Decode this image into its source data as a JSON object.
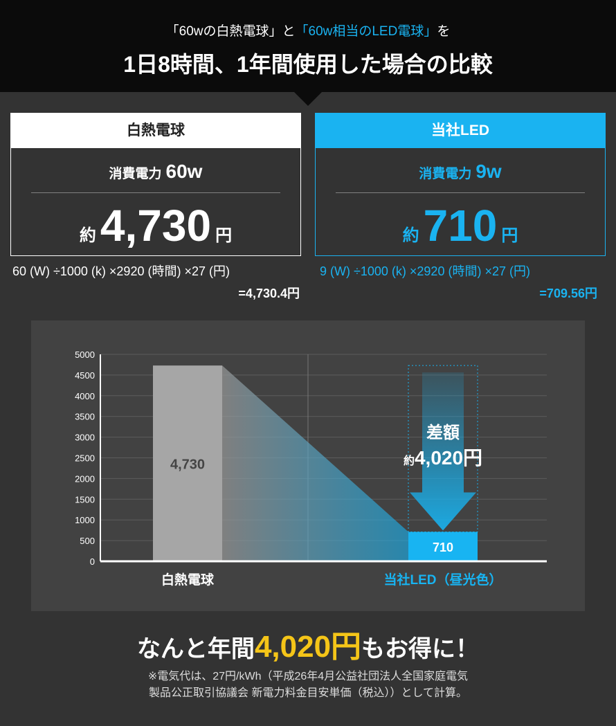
{
  "header": {
    "subtitle_parts": [
      "「60wの白熱電球」と",
      "「60w相当のLED電球」",
      "を"
    ],
    "title": "1日8時間、1年間使用した場合の比較"
  },
  "cards": [
    {
      "label": "白熱電球",
      "power_label": "消費電力",
      "power": "60w",
      "cost_prefix": "約",
      "cost": "4,730",
      "cost_unit": "円",
      "formula": "60 (W) ÷1000 (k) ×2920 (時間) ×27 (円)",
      "result": "=4,730.4円"
    },
    {
      "label": "当社LED",
      "power_label": "消費電力",
      "power": "9w",
      "cost_prefix": "約",
      "cost": "710",
      "cost_unit": "円",
      "formula": "9 (W) ÷1000 (k) ×2920 (時間) ×27 (円)",
      "result": "=709.56円"
    }
  ],
  "chart_data": {
    "type": "bar",
    "categories": [
      "白熱電球",
      "当社LED（昼光色）"
    ],
    "values": [
      4730,
      710
    ],
    "value_labels": [
      "4,730",
      "710"
    ],
    "colors": [
      "#a6a6a6",
      "#18b4f2"
    ],
    "ylim": [
      0,
      5000
    ],
    "yticks": [
      0,
      500,
      1000,
      1500,
      2000,
      2500,
      3000,
      3500,
      4000,
      4500,
      5000
    ],
    "grid": true,
    "annotation": {
      "title": "差額",
      "prefix": "約",
      "value": "4,020円"
    }
  },
  "footer": {
    "headline_parts": [
      "なんと年間",
      "4,020円",
      "もお得に！"
    ],
    "note_lines": [
      "※電気代は、27円/kWh（平成26年4月公益社団法人全国家庭電気",
      "製品公正取引協議会 新電力料金目安単価（税込））として計算。"
    ]
  }
}
